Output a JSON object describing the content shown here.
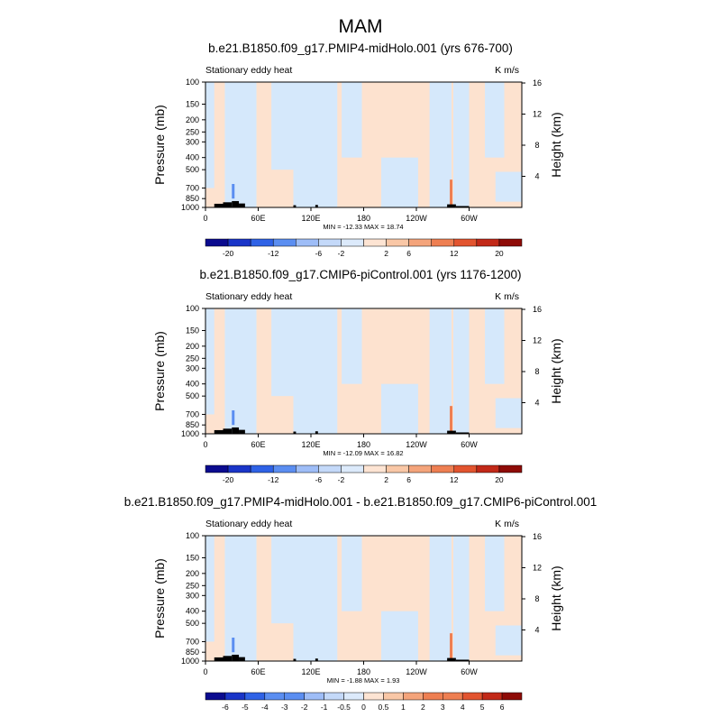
{
  "figure": {
    "title": "MAM"
  },
  "colors": {
    "light_warm": "#fde2cf",
    "light_cool": "#d5e8fb",
    "topo": "#000000",
    "colorbar": [
      "#0b0b8f",
      "#1a35c8",
      "#2f62e6",
      "#5b8ef1",
      "#9ebdf7",
      "#c4d9f9",
      "#dceafb",
      "#fde4d3",
      "#f9c7a6",
      "#f4a47b",
      "#ee7f52",
      "#e2542f",
      "#c22918",
      "#8e0b07"
    ]
  },
  "chart_data": [
    {
      "type": "heatmap",
      "title": "b.e21.B1850.f09_g17.PMIP4-midHolo.001 (yrs 676-700)",
      "left_string": "Stationary eddy heat",
      "right_string": "K m/s",
      "ylabel": "Pressure (mb)",
      "ylabel_right": "Height (km)",
      "y_ticks": [
        "100",
        "150",
        "200",
        "250",
        "300",
        "400",
        "500",
        "700",
        "850",
        "1000"
      ],
      "y_tick_values": [
        100,
        150,
        200,
        250,
        300,
        400,
        500,
        700,
        850,
        1000
      ],
      "x_ticks": [
        "0",
        "60E",
        "120E",
        "180",
        "120W",
        "60W"
      ],
      "x_tick_values": [
        0,
        60,
        120,
        180,
        240,
        300
      ],
      "xlim": [
        0,
        360
      ],
      "ylim": [
        1000,
        100
      ],
      "y_right_ticks": [
        "4",
        "8",
        "12",
        "16"
      ],
      "y_right_tick_values": [
        4,
        8,
        12,
        16
      ],
      "min_max": "MIN = -12.33  MAX =  18.74",
      "colorbar_labels": [
        "-20",
        "-12",
        "-6",
        "-2",
        "2",
        "6",
        "12",
        "20"
      ],
      "colorbar_levels": [
        -20,
        -16,
        -12,
        -8,
        -6,
        -4,
        -2,
        0,
        2,
        4,
        6,
        8,
        12,
        16,
        20
      ]
    },
    {
      "type": "heatmap",
      "title": "b.e21.B1850.f09_g17.CMIP6-piControl.001 (yrs 1176-1200)",
      "left_string": "Stationary eddy heat",
      "right_string": "K m/s",
      "ylabel": "Pressure (mb)",
      "ylabel_right": "Height (km)",
      "y_ticks": [
        "100",
        "150",
        "200",
        "250",
        "300",
        "400",
        "500",
        "700",
        "850",
        "1000"
      ],
      "y_tick_values": [
        100,
        150,
        200,
        250,
        300,
        400,
        500,
        700,
        850,
        1000
      ],
      "x_ticks": [
        "0",
        "60E",
        "120E",
        "180",
        "120W",
        "60W"
      ],
      "x_tick_values": [
        0,
        60,
        120,
        180,
        240,
        300
      ],
      "xlim": [
        0,
        360
      ],
      "ylim": [
        1000,
        100
      ],
      "y_right_ticks": [
        "4",
        "8",
        "12",
        "16"
      ],
      "y_right_tick_values": [
        4,
        8,
        12,
        16
      ],
      "min_max": "MIN = -12.09  MAX =  16.82",
      "colorbar_labels": [
        "-20",
        "-12",
        "-6",
        "-2",
        "2",
        "6",
        "12",
        "20"
      ],
      "colorbar_levels": [
        -20,
        -16,
        -12,
        -8,
        -6,
        -4,
        -2,
        0,
        2,
        4,
        6,
        8,
        12,
        16,
        20
      ]
    },
    {
      "type": "heatmap",
      "title": "b.e21.B1850.f09_g17.PMIP4-midHolo.001 - b.e21.B1850.f09_g17.CMIP6-piControl.001",
      "left_string": "Stationary eddy heat",
      "right_string": "K m/s",
      "ylabel": "Pressure (mb)",
      "ylabel_right": "Height (km)",
      "y_ticks": [
        "100",
        "150",
        "200",
        "250",
        "300",
        "400",
        "500",
        "700",
        "850",
        "1000"
      ],
      "y_tick_values": [
        100,
        150,
        200,
        250,
        300,
        400,
        500,
        700,
        850,
        1000
      ],
      "x_ticks": [
        "0",
        "60E",
        "120E",
        "180",
        "120W",
        "60W"
      ],
      "x_tick_values": [
        0,
        60,
        120,
        180,
        240,
        300
      ],
      "xlim": [
        0,
        360
      ],
      "ylim": [
        1000,
        100
      ],
      "y_right_ticks": [
        "4",
        "8",
        "12",
        "16"
      ],
      "y_right_tick_values": [
        4,
        8,
        12,
        16
      ],
      "min_max": "MIN = -1.88  MAX =  1.93",
      "colorbar_labels": [
        "-6",
        "-5",
        "-4",
        "-3",
        "-2",
        "-1",
        "-0.5",
        "0",
        "0.5",
        "1",
        "2",
        "3",
        "4",
        "5",
        "6"
      ],
      "colorbar_levels": [
        -7,
        -6,
        -5,
        -4,
        -3,
        -2,
        -1,
        -0.5,
        0,
        0.5,
        1,
        2,
        3,
        4,
        5,
        6,
        7
      ]
    }
  ]
}
